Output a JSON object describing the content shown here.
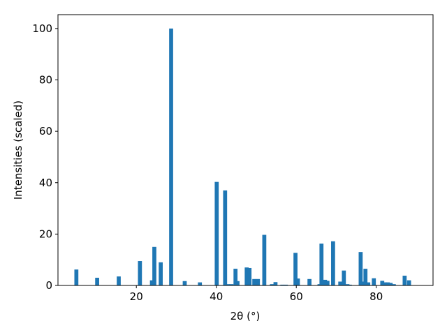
{
  "chart_data": {
    "type": "bar",
    "xlabel": "2θ (°)",
    "ylabel": "Intensities (scaled)",
    "color": "#1f77b4",
    "x": [
      5.0,
      10.2,
      15.6,
      20.9,
      23.9,
      24.5,
      26.1,
      28.7,
      32.1,
      35.9,
      40.1,
      42.2,
      42.9,
      43.8,
      44.8,
      45.3,
      47.6,
      48.3,
      49.5,
      50.4,
      52.0,
      53.9,
      54.8,
      56.5,
      57.4,
      59.8,
      60.4,
      63.3,
      65.8,
      66.3,
      67.2,
      67.8,
      69.2,
      71.0,
      71.9,
      72.8,
      73.4,
      76.1,
      76.6,
      77.3,
      78.0,
      79.4,
      81.5,
      82.2,
      82.9,
      83.6,
      84.4,
      87.1,
      88.2
    ],
    "values": [
      6.2,
      3.0,
      3.5,
      9.5,
      2.0,
      15,
      9,
      100,
      1.7,
      1.2,
      40.3,
      37,
      0.5,
      0.5,
      6.5,
      1.7,
      7.0,
      6.8,
      2.5,
      2.5,
      19.7,
      0.5,
      1.3,
      0.3,
      0.3,
      12.7,
      2.7,
      2.5,
      0.5,
      16.3,
      2.2,
      1.8,
      17.2,
      1.5,
      5.8,
      0.5,
      0.3,
      13,
      1.5,
      6.5,
      1.2,
      2.8,
      1.8,
      1.2,
      1.2,
      1.0,
      0.5,
      3.8,
      2.0
    ],
    "xlim": [
      0.4,
      94.2
    ],
    "ylim": [
      0,
      105.4
    ],
    "xticks": [
      20,
      40,
      60,
      80
    ],
    "yticks": [
      0,
      20,
      40,
      60,
      80,
      100
    ]
  }
}
